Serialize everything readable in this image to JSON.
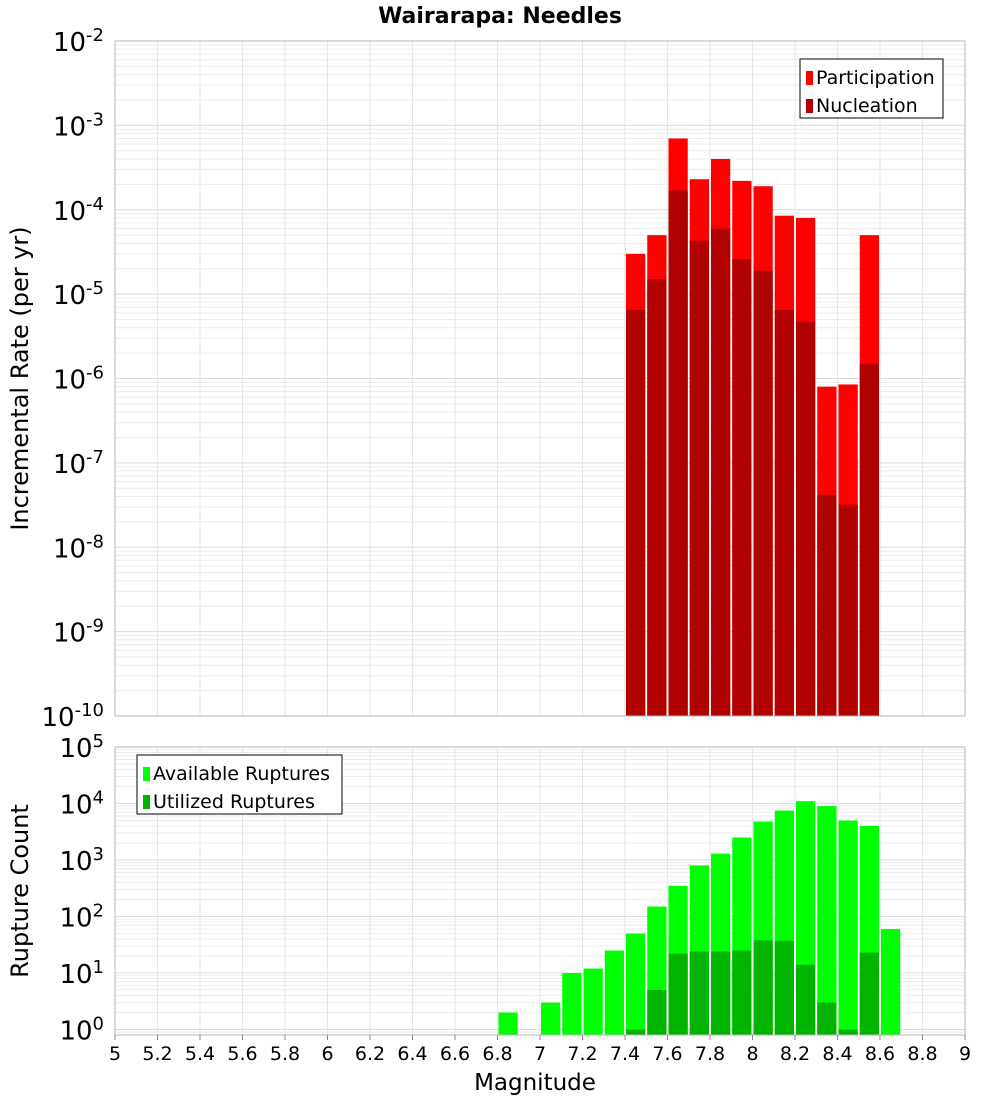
{
  "title": "Wairarapa: Needles",
  "chart_data": [
    {
      "type": "bar",
      "panel": "top",
      "ylabel": "Incremental Rate (per yr)",
      "yscale": "log",
      "ylim": [
        1e-10,
        0.01
      ],
      "xlim": [
        5,
        9
      ],
      "y_tick_exponents": [
        "-2",
        "-3",
        "-4",
        "-5",
        "-6",
        "-7",
        "-8",
        "-9",
        "-10"
      ],
      "legend_position": "top-right",
      "grid": true,
      "colors": {
        "Participation": "#ff0000",
        "Nucleation": "#b00000"
      },
      "x": [
        7.45,
        7.55,
        7.65,
        7.75,
        7.85,
        7.95,
        8.05,
        8.15,
        8.25,
        8.35,
        8.45,
        8.55
      ],
      "series": [
        {
          "name": "Participation",
          "values": [
            3e-05,
            5e-05,
            0.0007,
            0.00023,
            0.0004,
            0.00022,
            0.00019,
            8.5e-05,
            8e-05,
            8e-07,
            8.5e-07,
            5e-05
          ]
        },
        {
          "name": "Nucleation",
          "values": [
            6.5e-06,
            1.5e-05,
            0.00017,
            4.3e-05,
            6e-05,
            2.6e-05,
            1.9e-05,
            6.5e-06,
            4.7e-06,
            4.2e-08,
            3.2e-08,
            1.5e-06
          ]
        }
      ]
    },
    {
      "type": "bar",
      "panel": "bottom",
      "ylabel": "Rupture Count",
      "xlabel": "Magnitude",
      "yscale": "log",
      "ylim": [
        0.8,
        100000.0
      ],
      "xlim": [
        5,
        9
      ],
      "x_ticks": [
        "5",
        "5.2",
        "5.4",
        "5.6",
        "5.8",
        "6",
        "6.2",
        "6.4",
        "6.6",
        "6.8",
        "7",
        "7.2",
        "7.4",
        "7.6",
        "7.8",
        "8",
        "8.2",
        "8.4",
        "8.6",
        "8.8",
        "9"
      ],
      "y_tick_exponents": [
        "5",
        "4",
        "3",
        "2",
        "1",
        "0"
      ],
      "legend_position": "top-left",
      "grid": true,
      "colors": {
        "Available Ruptures": "#00ff00",
        "Utilized Ruptures": "#00b400"
      },
      "x": [
        6.85,
        7.05,
        7.15,
        7.25,
        7.35,
        7.45,
        7.55,
        7.65,
        7.75,
        7.85,
        7.95,
        8.05,
        8.15,
        8.25,
        8.35,
        8.45,
        8.55,
        8.65
      ],
      "series": [
        {
          "name": "Available Ruptures",
          "values": [
            2,
            3,
            10,
            12,
            25,
            50,
            150,
            350,
            800,
            1300,
            2500,
            4800,
            7500,
            11000,
            9000,
            5000,
            4000,
            60
          ]
        },
        {
          "name": "Utilized Ruptures",
          "values": [
            0,
            0,
            0,
            0,
            0,
            1,
            5,
            22,
            24,
            24,
            25,
            38,
            37,
            14,
            3,
            1,
            23,
            0
          ]
        }
      ]
    }
  ]
}
